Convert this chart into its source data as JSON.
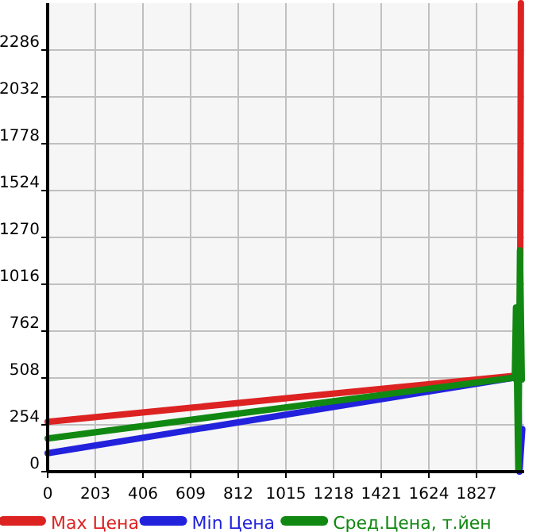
{
  "chart_data": {
    "type": "line",
    "xlim": [
      0,
      2030
    ],
    "ylim": [
      0,
      2540
    ],
    "xticks": [
      0,
      203,
      406,
      609,
      812,
      1015,
      1218,
      1421,
      1624,
      1827
    ],
    "yticks": [
      0,
      254,
      508,
      762,
      1016,
      1270,
      1524,
      1778,
      2032,
      2286
    ],
    "grid": true,
    "legend": "bottom",
    "line_style": "solid",
    "series": [
      {
        "name": "Max Цена",
        "color": "#dd2222",
        "x": [
          0,
          1990,
          2012,
          2016
        ],
        "values": [
          270,
          520,
          540,
          2540
        ]
      },
      {
        "name": "Min Цена",
        "color": "#2222dd",
        "x": [
          0,
          1990,
          2005,
          2010,
          2022
        ],
        "values": [
          100,
          510,
          480,
          0,
          230
        ]
      },
      {
        "name": "Сред.Цена, т.йен",
        "color": "#118811",
        "x": [
          0,
          1990,
          1995,
          2005,
          2012,
          2020
        ],
        "values": [
          180,
          510,
          890,
          10,
          1200,
          500
        ]
      }
    ]
  }
}
